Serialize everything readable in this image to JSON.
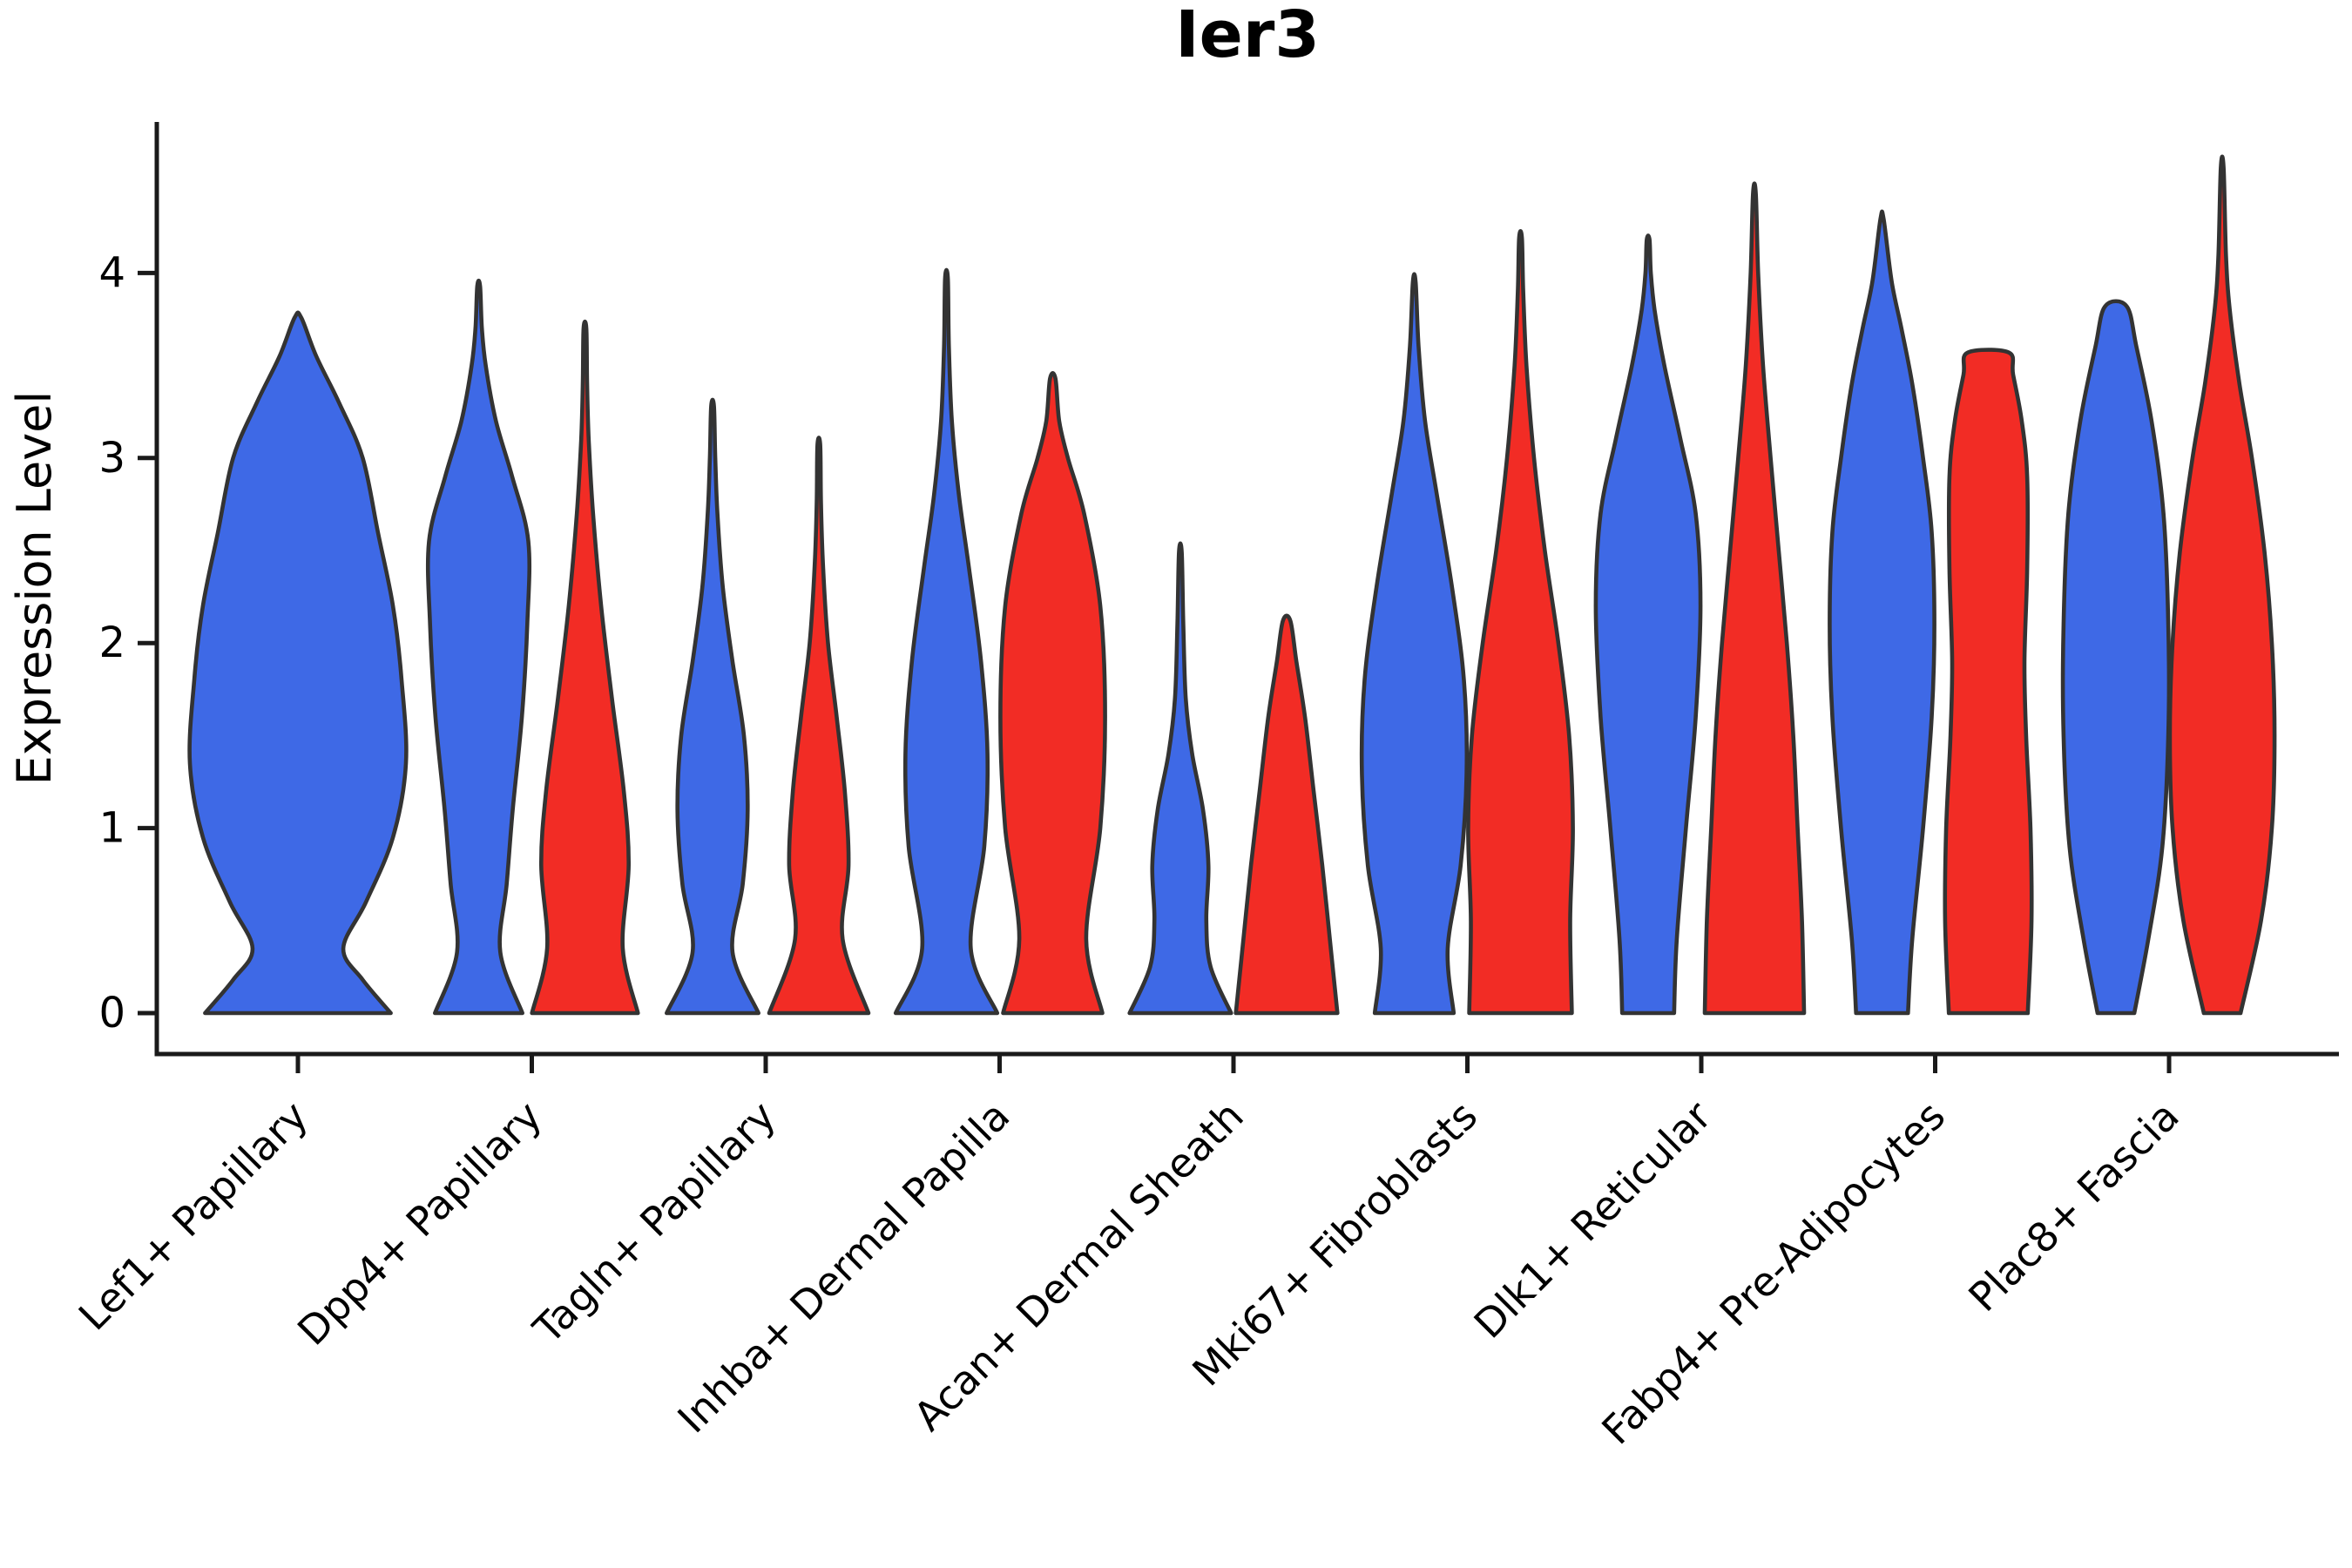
{
  "title": "Ier3",
  "colors": {
    "blue": "#3E69E6",
    "red": "#F22C25",
    "outline": "#333333",
    "axis": "#1a1a1a",
    "background": "#ffffff"
  },
  "chart_data": {
    "type": "violin",
    "title": "Ier3",
    "xlabel": "",
    "ylabel": "Expression Level",
    "yticks": [
      "0",
      "1",
      "2",
      "3",
      "4"
    ],
    "ytick_values": [
      0,
      1,
      2,
      3,
      4
    ],
    "ylim": [
      0,
      4.75
    ],
    "grid": false,
    "legend": "none",
    "hue_colors": {
      "blue": "#3E69E6",
      "red": "#F22C25"
    },
    "categories": [
      "Lef1+ Papillary",
      "Dpp4+ Papillary",
      "Tagln+ Papillary",
      "Inhba+ Dermal Papilla",
      "Acan+ Dermal Sheath",
      "Mki67+ Fibroblasts",
      "Dlk1+ Reticular",
      "Fabp4+ Pre-Adipocytes",
      "Plac8+ Fascia"
    ],
    "groups": [
      {
        "category": "Lef1+ Papillary",
        "violins": [
          {
            "hue": "blue",
            "max": 3.76,
            "width_scale": 2.0,
            "flat_top": false,
            "profile": [
              [
                0,
                0.86
              ],
              [
                0.18,
                0.6
              ],
              [
                0.35,
                0.42
              ],
              [
                0.6,
                0.63
              ],
              [
                0.95,
                0.88
              ],
              [
                1.35,
                1.0
              ],
              [
                1.8,
                0.96
              ],
              [
                2.2,
                0.88
              ],
              [
                2.6,
                0.74
              ],
              [
                3.0,
                0.6
              ],
              [
                3.3,
                0.38
              ],
              [
                3.55,
                0.17
              ],
              [
                3.76,
                0.03
              ]
            ]
          }
        ]
      },
      {
        "category": "Dpp4+ Papillary",
        "violins": [
          {
            "hue": "blue",
            "max": 3.93,
            "width_scale": 1.0,
            "flat_top": false,
            "profile": [
              [
                0,
                0.81
              ],
              [
                0.33,
                0.4
              ],
              [
                0.7,
                0.52
              ],
              [
                1.1,
                0.63
              ],
              [
                1.6,
                0.8
              ],
              [
                2.1,
                0.9
              ],
              [
                2.55,
                0.92
              ],
              [
                2.9,
                0.62
              ],
              [
                3.2,
                0.32
              ],
              [
                3.5,
                0.13
              ],
              [
                3.7,
                0.06
              ],
              [
                3.93,
                0.025
              ]
            ]
          },
          {
            "hue": "red",
            "max": 3.7,
            "width_scale": 1.0,
            "flat_top": false,
            "profile": [
              [
                0,
                0.98
              ],
              [
                0.35,
                0.7
              ],
              [
                0.8,
                0.81
              ],
              [
                1.2,
                0.72
              ],
              [
                1.7,
                0.5
              ],
              [
                2.2,
                0.3
              ],
              [
                2.7,
                0.15
              ],
              [
                3.1,
                0.07
              ],
              [
                3.4,
                0.04
              ],
              [
                3.7,
                0.02
              ]
            ]
          }
        ]
      },
      {
        "category": "Tagln+ Papillary",
        "violins": [
          {
            "hue": "blue",
            "max": 3.28,
            "width_scale": 1.0,
            "flat_top": false,
            "profile": [
              [
                0,
                0.85
              ],
              [
                0.33,
                0.37
              ],
              [
                0.7,
                0.56
              ],
              [
                1.1,
                0.65
              ],
              [
                1.5,
                0.58
              ],
              [
                1.9,
                0.37
              ],
              [
                2.3,
                0.19
              ],
              [
                2.7,
                0.09
              ],
              [
                3.0,
                0.05
              ],
              [
                3.28,
                0.025
              ]
            ]
          },
          {
            "hue": "red",
            "max": 3.07,
            "width_scale": 1.0,
            "flat_top": false,
            "profile": [
              [
                0,
                0.92
              ],
              [
                0.4,
                0.44
              ],
              [
                0.8,
                0.55
              ],
              [
                1.2,
                0.48
              ],
              [
                1.6,
                0.33
              ],
              [
                2.0,
                0.17
              ],
              [
                2.4,
                0.08
              ],
              [
                2.75,
                0.04
              ],
              [
                3.07,
                0.02
              ]
            ]
          }
        ]
      },
      {
        "category": "Inhba+ Dermal Papilla",
        "violins": [
          {
            "hue": "blue",
            "max": 3.97,
            "width_scale": 1.0,
            "flat_top": false,
            "profile": [
              [
                0,
                0.94
              ],
              [
                0.35,
                0.45
              ],
              [
                0.9,
                0.7
              ],
              [
                1.4,
                0.76
              ],
              [
                1.9,
                0.64
              ],
              [
                2.4,
                0.42
              ],
              [
                2.8,
                0.23
              ],
              [
                3.2,
                0.1
              ],
              [
                3.6,
                0.045
              ],
              [
                3.97,
                0.02
              ]
            ]
          },
          {
            "hue": "red",
            "max": 3.43,
            "width_scale": 1.0,
            "flat_top": false,
            "profile": [
              [
                0,
                0.92
              ],
              [
                0.4,
                0.62
              ],
              [
                1.0,
                0.88
              ],
              [
                1.6,
                0.97
              ],
              [
                2.2,
                0.88
              ],
              [
                2.7,
                0.58
              ],
              [
                3.0,
                0.28
              ],
              [
                3.2,
                0.12
              ],
              [
                3.43,
                0.05
              ]
            ]
          }
        ]
      },
      {
        "category": "Acan+ Dermal Sheath",
        "violins": [
          {
            "hue": "blue",
            "max": 2.49,
            "width_scale": 1.0,
            "flat_top": false,
            "profile": [
              [
                0,
                0.94
              ],
              [
                0.25,
                0.56
              ],
              [
                0.5,
                0.48
              ],
              [
                0.8,
                0.52
              ],
              [
                1.1,
                0.42
              ],
              [
                1.4,
                0.22
              ],
              [
                1.7,
                0.1
              ],
              [
                2.1,
                0.055
              ],
              [
                2.49,
                0.025
              ]
            ]
          },
          {
            "hue": "red",
            "max": 2.12,
            "width_scale": 1.0,
            "flat_top": false,
            "profile": [
              [
                0,
                0.94
              ],
              [
                0.4,
                0.8
              ],
              [
                0.8,
                0.66
              ],
              [
                1.2,
                0.5
              ],
              [
                1.6,
                0.34
              ],
              [
                1.9,
                0.18
              ],
              [
                2.12,
                0.07
              ]
            ]
          }
        ]
      },
      {
        "category": "Mki67+ Fibroblasts",
        "violins": [
          {
            "hue": "blue",
            "max": 3.95,
            "width_scale": 1.0,
            "flat_top": false,
            "profile": [
              [
                0,
                0.73
              ],
              [
                0.35,
                0.62
              ],
              [
                0.8,
                0.86
              ],
              [
                1.3,
                0.97
              ],
              [
                1.8,
                0.92
              ],
              [
                2.3,
                0.7
              ],
              [
                2.8,
                0.42
              ],
              [
                3.2,
                0.2
              ],
              [
                3.6,
                0.08
              ],
              [
                3.95,
                0.025
              ]
            ]
          },
          {
            "hue": "red",
            "max": 4.19,
            "width_scale": 1.0,
            "flat_top": false,
            "profile": [
              [
                0,
                0.95
              ],
              [
                0.5,
                0.92
              ],
              [
                1.0,
                0.97
              ],
              [
                1.5,
                0.9
              ],
              [
                2.0,
                0.7
              ],
              [
                2.5,
                0.45
              ],
              [
                3.0,
                0.25
              ],
              [
                3.5,
                0.11
              ],
              [
                3.9,
                0.05
              ],
              [
                4.19,
                0.02
              ]
            ]
          }
        ]
      },
      {
        "category": "Dlk1+ Reticular",
        "violins": [
          {
            "hue": "blue",
            "max": 4.18,
            "width_scale": 1.0,
            "flat_top": false,
            "profile": [
              [
                0,
                0.48
              ],
              [
                0.4,
                0.53
              ],
              [
                1.0,
                0.7
              ],
              [
                1.6,
                0.88
              ],
              [
                2.2,
                0.97
              ],
              [
                2.7,
                0.88
              ],
              [
                3.1,
                0.6
              ],
              [
                3.5,
                0.3
              ],
              [
                3.8,
                0.12
              ],
              [
                4.0,
                0.05
              ],
              [
                4.18,
                0.02
              ]
            ]
          },
          {
            "hue": "red",
            "max": 4.43,
            "width_scale": 1.0,
            "flat_top": false,
            "profile": [
              [
                0,
                0.92
              ],
              [
                0.5,
                0.88
              ],
              [
                1.0,
                0.8
              ],
              [
                1.5,
                0.72
              ],
              [
                2.0,
                0.6
              ],
              [
                2.5,
                0.45
              ],
              [
                3.0,
                0.3
              ],
              [
                3.5,
                0.16
              ],
              [
                4.0,
                0.07
              ],
              [
                4.43,
                0.02
              ]
            ]
          }
        ]
      },
      {
        "category": "Fabp4+ Pre-Adipocytes",
        "violins": [
          {
            "hue": "blue",
            "max": 4.29,
            "width_scale": 1.0,
            "flat_top": false,
            "profile": [
              [
                0,
                0.48
              ],
              [
                0.4,
                0.56
              ],
              [
                1.0,
                0.76
              ],
              [
                1.6,
                0.92
              ],
              [
                2.1,
                0.97
              ],
              [
                2.6,
                0.92
              ],
              [
                3.0,
                0.76
              ],
              [
                3.4,
                0.56
              ],
              [
                3.7,
                0.36
              ],
              [
                3.95,
                0.18
              ],
              [
                4.29,
                0.03
              ]
            ]
          },
          {
            "hue": "red",
            "max": 3.57,
            "width_scale": 1.0,
            "flat_top": true,
            "profile": [
              [
                0,
                0.73
              ],
              [
                0.5,
                0.8
              ],
              [
                1.0,
                0.78
              ],
              [
                1.5,
                0.7
              ],
              [
                1.9,
                0.67
              ],
              [
                2.4,
                0.72
              ],
              [
                2.9,
                0.72
              ],
              [
                3.2,
                0.62
              ],
              [
                3.45,
                0.46
              ],
              [
                3.57,
                0.38
              ]
            ]
          }
        ]
      },
      {
        "category": "Plac8+ Fascia",
        "violins": [
          {
            "hue": "blue",
            "max": 3.82,
            "width_scale": 1.0,
            "flat_top": true,
            "profile": [
              [
                0,
                0.34
              ],
              [
                0.4,
                0.6
              ],
              [
                0.9,
                0.86
              ],
              [
                1.5,
                0.97
              ],
              [
                2.1,
                0.97
              ],
              [
                2.7,
                0.88
              ],
              [
                3.2,
                0.66
              ],
              [
                3.6,
                0.38
              ],
              [
                3.82,
                0.2
              ]
            ]
          },
          {
            "hue": "red",
            "max": 4.57,
            "width_scale": 1.0,
            "flat_top": false,
            "profile": [
              [
                0,
                0.34
              ],
              [
                0.5,
                0.72
              ],
              [
                1.0,
                0.92
              ],
              [
                1.5,
                0.97
              ],
              [
                2.0,
                0.92
              ],
              [
                2.5,
                0.78
              ],
              [
                3.0,
                0.55
              ],
              [
                3.4,
                0.32
              ],
              [
                3.8,
                0.14
              ],
              [
                4.1,
                0.07
              ],
              [
                4.57,
                0.025
              ]
            ]
          }
        ]
      }
    ]
  }
}
